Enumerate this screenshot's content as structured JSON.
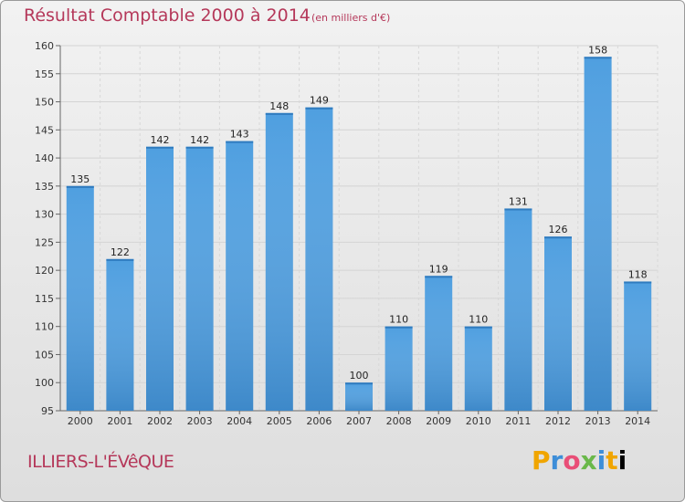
{
  "title": "Résultat Comptable 2000 à 2014",
  "subtitle": "(en milliers d'€)",
  "town": "ILLIERS-L'ÉVêQUE",
  "logo": {
    "text": "Proxiti",
    "letters": [
      "P",
      "r",
      "o",
      "x",
      "i",
      "t",
      "i"
    ]
  },
  "colors": {
    "bar": "#4f9fe0",
    "bar_dark": "#2f7bbf",
    "title": "#b5385a"
  },
  "chart_data": {
    "type": "bar",
    "title": "Résultat Comptable 2000 à 2014",
    "subtitle": "(en milliers d'€)",
    "categories": [
      "2000",
      "2001",
      "2002",
      "2003",
      "2004",
      "2005",
      "2006",
      "2007",
      "2008",
      "2009",
      "2010",
      "2011",
      "2012",
      "2013",
      "2014"
    ],
    "values": [
      135,
      122,
      142,
      142,
      143,
      148,
      149,
      100,
      110,
      119,
      110,
      131,
      126,
      158,
      118
    ],
    "ylim": [
      95,
      160
    ],
    "yticks": [
      95,
      100,
      105,
      110,
      115,
      120,
      125,
      130,
      135,
      140,
      145,
      150,
      155,
      160
    ],
    "grid": true,
    "xlabel": "",
    "ylabel": ""
  }
}
